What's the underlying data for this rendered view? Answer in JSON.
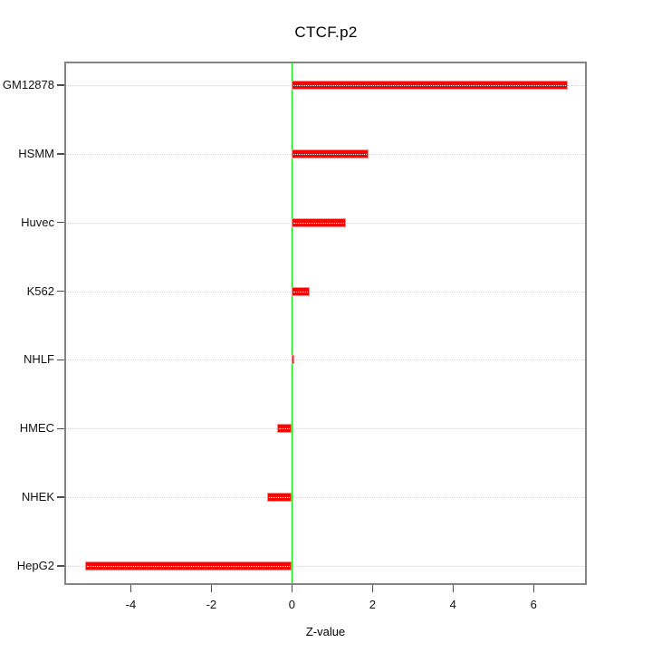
{
  "title": "CTCF.p2",
  "chart_data": {
    "type": "bar",
    "orientation": "horizontal",
    "title": "CTCF.p2",
    "xlabel": "Z-value",
    "ylabel": "",
    "categories": [
      "GM12878",
      "HSMM",
      "Huvec",
      "K562",
      "NHLF",
      "HMEC",
      "NHEK",
      "HepG2"
    ],
    "values": [
      6.84,
      1.9,
      1.35,
      0.45,
      0.05,
      -0.36,
      -0.62,
      -5.14
    ],
    "xlim": [
      -5.65,
      7.32
    ],
    "xticks": [
      -4,
      -2,
      0,
      2,
      4,
      6
    ],
    "zero_reference_line": 0,
    "grid": "horizontal dotted line per category",
    "legend": "none"
  },
  "colors": {
    "bar_fill": "#ff0000",
    "bar_border": "#ff8d8d",
    "bar_center_dots": "#ffffff",
    "zero_line": "#00ee00",
    "gridline": "#d4d4d4",
    "plot_border": "#848484",
    "tick": "#4d4d4d",
    "text": "#000000",
    "background": "#ffffff"
  }
}
